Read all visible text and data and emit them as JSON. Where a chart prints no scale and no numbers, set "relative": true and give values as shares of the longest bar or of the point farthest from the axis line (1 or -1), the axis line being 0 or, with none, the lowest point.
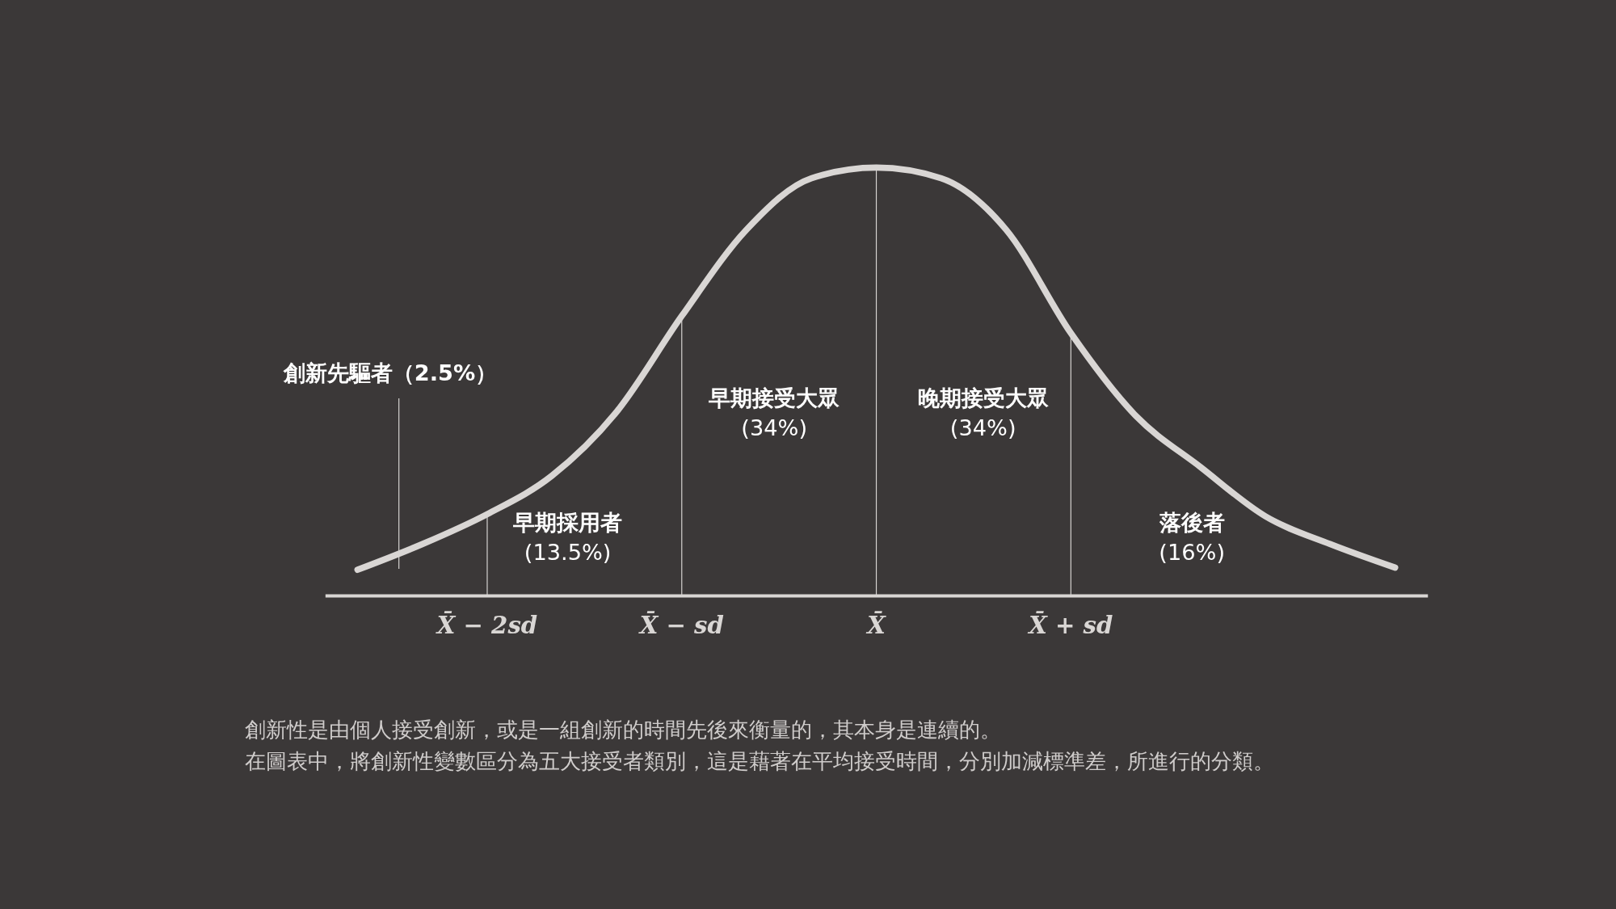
{
  "chart_data": {
    "type": "line",
    "relative": true,
    "categories": [
      null,
      null,
      "X̄ − 2sd",
      null,
      null,
      "X̄ − sd",
      null,
      null,
      "X̄",
      null,
      null,
      "X̄ + sd",
      null,
      null,
      null,
      null,
      null
    ],
    "series": [
      {
        "color": "#d9d6d4",
        "values": [
          0.06,
          0.12,
          0.19,
          0.28,
          0.43,
          0.653,
          0.855,
          0.975,
          1,
          0.975,
          0.855,
          0.613,
          0.42,
          0.3,
          0.185,
          0.12,
          0.065
        ]
      }
    ],
    "tick_labels": "x",
    "grid": false,
    "marker": "none",
    "line_style": "solid",
    "ref_lines": [
      {
        "axis": "x",
        "value": "X̄ − 2sd"
      },
      {
        "axis": "x",
        "value": "X̄ − sd"
      },
      {
        "axis": "x",
        "value": "X̄"
      },
      {
        "axis": "x",
        "value": "X̄ + sd"
      }
    ],
    "annotations": [
      "創新先驅者（2.5%）",
      "早期採用者\n(13.5%)",
      "早期接受大眾\n(34%)",
      "晚期接受大眾\n(34%)",
      "落後者\n(16%)",
      "創新性是由個人接受創新，或是一組創新的時間先後來衡量的，其本身是連續的。",
      "在圖表中，將創新性變數區分為五大接受者類別，這是藉著在平均接受時間，分別加減標準差，所進行的分類。"
    ]
  }
}
